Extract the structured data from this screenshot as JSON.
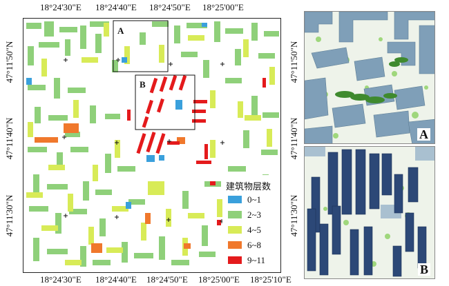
{
  "top_coords": [
    "18°24'30\"E",
    "18°24'40\"E",
    "18°24'50\"E",
    "18°25'00\"E"
  ],
  "bottom_coords": [
    "18°24'30\"E",
    "18°24'40\"E",
    "18°24'50\"E",
    "18°25'00\"E",
    "18°25'10\"E"
  ],
  "left_coords": [
    "47°11'50\"N",
    "47°11'40\"N",
    "47°11'30\"N"
  ],
  "right_coords": [
    "47°11'50\"N",
    "47°11'40\"N",
    "47°11'30\"N"
  ],
  "box_labels": {
    "a": "A",
    "b": "B"
  },
  "inset_labels": {
    "a": "A",
    "b": "B"
  },
  "legend": {
    "title": "建筑物层数",
    "items": [
      {
        "label": "0~1",
        "color": "#3aa0dc"
      },
      {
        "label": "2~3",
        "color": "#8fd07a"
      },
      {
        "label": "4~5",
        "color": "#d8eb57"
      },
      {
        "label": "6~8",
        "color": "#f0782c"
      },
      {
        "label": "9~11",
        "color": "#e41a1c"
      }
    ]
  },
  "colors": {
    "inset_a_building": "#7f9fb8",
    "inset_b_building": "#2c4877",
    "tree": "#3f8a2e"
  }
}
